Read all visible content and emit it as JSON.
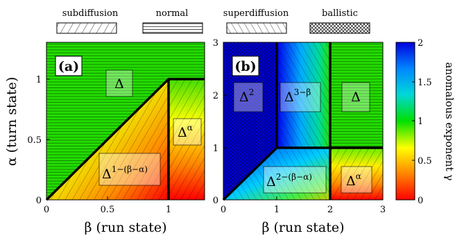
{
  "legend": [
    {
      "label": "subdiffusion",
      "pattern": "subdiffusion"
    },
    {
      "label": "normal",
      "pattern": "normal"
    },
    {
      "label": "superdiffusion",
      "pattern": "superdiffusion"
    },
    {
      "label": "ballistic",
      "pattern": "ballistic"
    }
  ],
  "colorbar": {
    "label": "anomalous exponent γ",
    "ticks": [
      "0",
      "0.5",
      "1",
      "1.5",
      "2"
    ],
    "range": [
      0,
      2
    ],
    "colors": [
      "#ff0000",
      "#ff8800",
      "#ffff00",
      "#00e000",
      "#00d8d8",
      "#0088ff",
      "#0000dd"
    ]
  },
  "chart_data": [
    {
      "type": "heatmap",
      "panel_label": "(a)",
      "xlabel": "β (run state)",
      "ylabel": "α (turn state)",
      "xlim": [
        0,
        1.3
      ],
      "ylim": [
        0,
        1.3
      ],
      "xticks": [
        "0",
        "0.5",
        "1"
      ],
      "yticks": [
        "0",
        "0.5",
        "1"
      ],
      "regions": [
        {
          "label": "Δ",
          "regime": "normal",
          "gamma": 1
        },
        {
          "label": "Δ^{1−(β−α)}",
          "regime": "subdiffusion",
          "gamma": "1−(β−α)"
        },
        {
          "label": "Δ^α",
          "regime": "subdiffusion",
          "gamma": "α"
        }
      ]
    },
    {
      "type": "heatmap",
      "panel_label": "(b)",
      "xlabel": "β (run state)",
      "xlim": [
        0,
        3
      ],
      "ylim": [
        0,
        3
      ],
      "xticks": [
        "0",
        "1",
        "2",
        "3"
      ],
      "yticks": [
        "0",
        "1",
        "2",
        "3"
      ],
      "regions": [
        {
          "label": "Δ²",
          "regime": "ballistic",
          "gamma": 2
        },
        {
          "label": "Δ^{3−β}",
          "regime": "superdiffusion",
          "gamma": "3−β"
        },
        {
          "label": "Δ",
          "regime": "normal",
          "gamma": 1
        },
        {
          "label": "Δ^{2−(β−α)}",
          "regime": "superdiffusion",
          "gamma": "2−(β−α)"
        },
        {
          "label": "Δ^α",
          "regime": "subdiffusion",
          "gamma": "α"
        }
      ]
    }
  ]
}
